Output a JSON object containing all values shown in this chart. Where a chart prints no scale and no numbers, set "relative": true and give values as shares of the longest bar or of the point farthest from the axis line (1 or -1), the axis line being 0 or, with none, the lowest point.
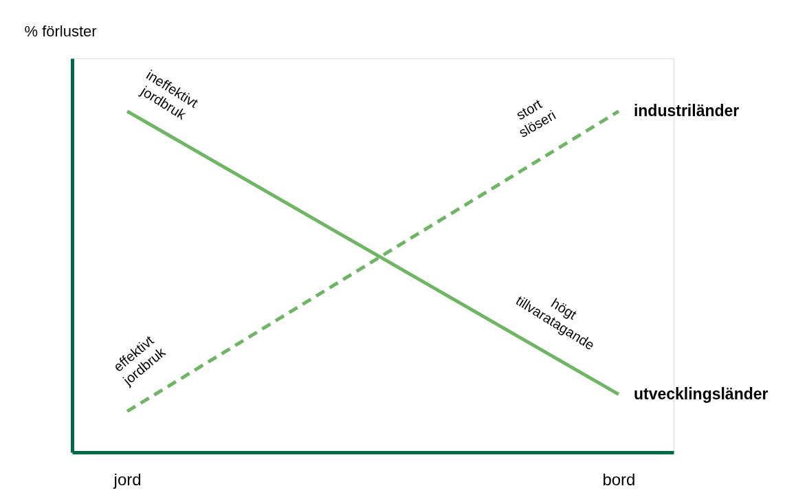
{
  "chart_data": {
    "type": "line",
    "relative": true,
    "ylabel": "% förluster",
    "categories": [
      "jord",
      "bord"
    ],
    "series": [
      {
        "name": "utvecklingsländer",
        "color": "#70b566",
        "line_style": "solid",
        "values": [
          1,
          0.17
        ]
      },
      {
        "name": "industriländer",
        "color": "#70b566",
        "line_style": "dashed",
        "values": [
          0.12,
          1
        ]
      }
    ],
    "annotations": [
      "ineffektivt\njordbruk",
      "stort\nslöseri",
      "högt\ntillvaratagande",
      "effektivt\njordbruk"
    ],
    "grid": false,
    "legend": false
  }
}
